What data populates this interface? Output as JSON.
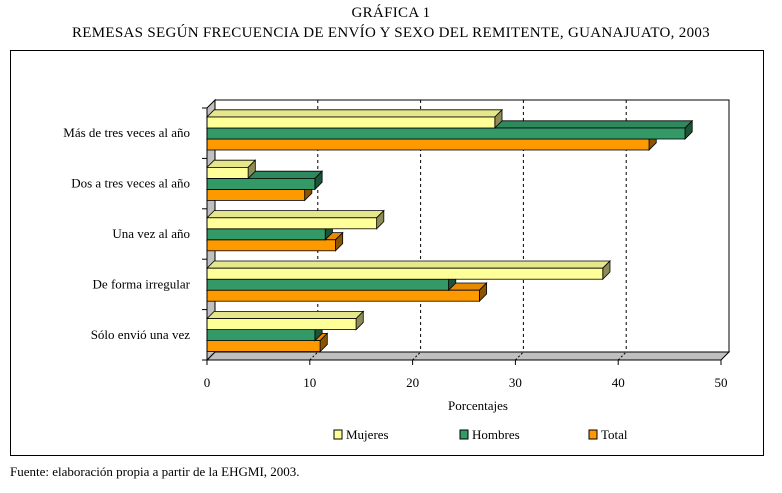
{
  "chart_data": {
    "type": "bar",
    "orientation": "horizontal",
    "title": "GRÁFICA 1",
    "subtitle": "REMESAS SEGÚN FRECUENCIA DE ENVÍO Y SEXO DEL REMITENTE, GUANAJUATO, 2003",
    "categories": [
      "Más de tres veces al año",
      "Dos a tres veces al año",
      "Una vez al año",
      "De forma irregular",
      "Sólo envió una vez"
    ],
    "series": [
      {
        "name": "Mujeres",
        "color": "#ffff99",
        "values": [
          28,
          4,
          16.5,
          38.5,
          14.5
        ]
      },
      {
        "name": "Hombres",
        "color": "#339966",
        "values": [
          46.5,
          10.5,
          11.5,
          23.5,
          10.5
        ]
      },
      {
        "name": "Total",
        "color": "#ff9900",
        "values": [
          43,
          9.5,
          12.5,
          26.5,
          11
        ]
      }
    ],
    "xlabel": "Porcentajes",
    "ylabel": "",
    "xlim": [
      0,
      50
    ],
    "xticks": [
      "0",
      "10",
      "20",
      "30",
      "40",
      "50"
    ],
    "grid": "vertical dashed",
    "legend": "bottom"
  },
  "footer": {
    "source": "Fuente: elaboración propia a partir de la EHGMI, 2003."
  }
}
